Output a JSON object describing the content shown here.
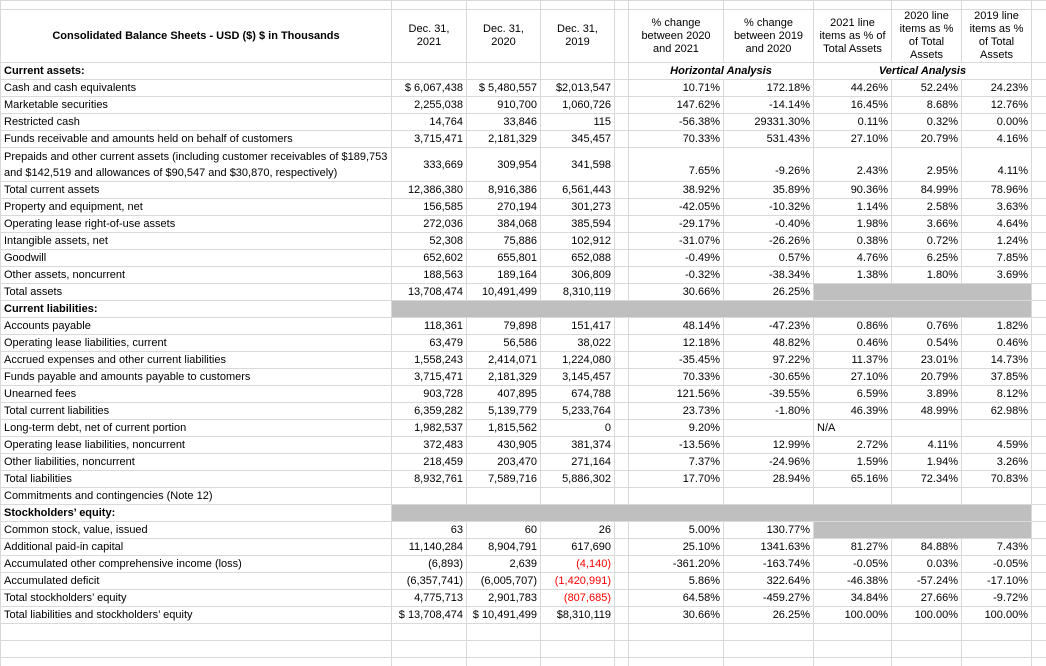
{
  "header": {
    "title": "Consolidated Balance Sheets - USD ($) $ in Thousands",
    "columns": [
      "Dec. 31, 2021",
      "Dec. 31, 2020",
      "Dec. 31, 2019",
      "% change between 2020 and 2021",
      "% change between 2019 and 2020",
      "2021 line items as % of Total Assets",
      "2020 line items as % of Total Assets",
      "2019 line items as % of Total Assets"
    ]
  },
  "analysis_labels": {
    "horizontal": "Horizontal Analysis",
    "vertical": "Vertical Analysis"
  },
  "colors": {
    "grey_fill": "#bfbfbf",
    "negative_red": "#ff0000",
    "gridline": "#d9d9d9"
  },
  "rows": [
    {
      "label": "Current assets:",
      "bold": true,
      "analysis": true
    },
    {
      "label": "Cash and cash equivalents",
      "values": [
        "$ 6,067,438",
        "$ 5,480,557",
        "$2,013,547",
        "10.71%",
        "172.18%",
        "44.26%",
        "52.24%",
        "24.23%"
      ]
    },
    {
      "label": "Marketable securities",
      "values": [
        "2,255,038",
        "910,700",
        "1,060,726",
        "147.62%",
        "-14.14%",
        "16.45%",
        "8.68%",
        "12.76%"
      ]
    },
    {
      "label": "Restricted cash",
      "values": [
        "14,764",
        "33,846",
        "115",
        "-56.38%",
        "29331.30%",
        "0.11%",
        "0.32%",
        "0.00%"
      ]
    },
    {
      "label": "Funds receivable and amounts held on behalf of customers",
      "values": [
        "3,715,471",
        "2,181,329",
        "345,457",
        "70.33%",
        "531.43%",
        "27.10%",
        "20.79%",
        "4.16%"
      ]
    },
    {
      "label": "Prepaids and other current assets (including customer receivables of $189,753 and $142,519 and allowances of $90,547 and $30,870, respectively)",
      "tall": true,
      "pct_bottom": true,
      "values": [
        "333,669",
        "309,954",
        "341,598",
        "7.65%",
        "-9.26%",
        "2.43%",
        "2.95%",
        "4.11%"
      ]
    },
    {
      "label": "Total current assets",
      "values": [
        "12,386,380",
        "8,916,386",
        "6,561,443",
        "38.92%",
        "35.89%",
        "90.36%",
        "84.99%",
        "78.96%"
      ]
    },
    {
      "label": "Property and equipment, net",
      "values": [
        "156,585",
        "270,194",
        "301,273",
        "-42.05%",
        "-10.32%",
        "1.14%",
        "2.58%",
        "3.63%"
      ]
    },
    {
      "label": "Operating lease right-of-use assets",
      "values": [
        "272,036",
        "384,068",
        "385,594",
        "-29.17%",
        "-0.40%",
        "1.98%",
        "3.66%",
        "4.64%"
      ]
    },
    {
      "label": "Intangible assets, net",
      "values": [
        "52,308",
        "75,886",
        "102,912",
        "-31.07%",
        "-26.26%",
        "0.38%",
        "0.72%",
        "1.24%"
      ]
    },
    {
      "label": "Goodwill",
      "values": [
        "652,602",
        "655,801",
        "652,088",
        "-0.49%",
        "0.57%",
        "4.76%",
        "6.25%",
        "7.85%"
      ]
    },
    {
      "label": "Other assets, noncurrent",
      "values": [
        "188,563",
        "189,164",
        "306,809",
        "-0.32%",
        "-38.34%",
        "1.38%",
        "1.80%",
        "3.69%"
      ]
    },
    {
      "label": "Total assets",
      "grey": "vertical",
      "values": [
        "13,708,474",
        "10,491,499",
        "8,310,119",
        "30.66%",
        "26.25%",
        "",
        "",
        ""
      ]
    },
    {
      "label": "Current liabilities:",
      "bold": true,
      "grey": "data"
    },
    {
      "label": "Accounts payable",
      "values": [
        "118,361",
        "79,898",
        "151,417",
        "48.14%",
        "-47.23%",
        "0.86%",
        "0.76%",
        "1.82%"
      ]
    },
    {
      "label": "Operating lease liabilities, current",
      "values": [
        "63,479",
        "56,586",
        "38,022",
        "12.18%",
        "48.82%",
        "0.46%",
        "0.54%",
        "0.46%"
      ]
    },
    {
      "label": "Accrued expenses and other current liabilities",
      "values": [
        "1,558,243",
        "2,414,071",
        "1,224,080",
        "-35.45%",
        "97.22%",
        "11.37%",
        "23.01%",
        "14.73%"
      ]
    },
    {
      "label": "Funds payable and amounts payable to customers",
      "values": [
        "3,715,471",
        "2,181,329",
        "3,145,457",
        "70.33%",
        "-30.65%",
        "27.10%",
        "20.79%",
        "37.85%"
      ]
    },
    {
      "label": "Unearned fees",
      "values": [
        "903,728",
        "407,895",
        "674,788",
        "121.56%",
        "-39.55%",
        "6.59%",
        "3.89%",
        "8.12%"
      ]
    },
    {
      "label": "Total current liabilities",
      "values": [
        "6,359,282",
        "5,139,779",
        "5,233,764",
        "23.73%",
        "-1.80%",
        "46.39%",
        "48.99%",
        "62.98%"
      ]
    },
    {
      "label": "Long-term debt, net of current portion",
      "na_left": true,
      "values": [
        "1,982,537",
        "1,815,562",
        "0",
        "9.20%",
        "",
        "N/A",
        "",
        ""
      ]
    },
    {
      "label": "Operating lease liabilities, noncurrent",
      "values": [
        "372,483",
        "430,905",
        "381,374",
        "-13.56%",
        "12.99%",
        "2.72%",
        "4.11%",
        "4.59%"
      ]
    },
    {
      "label": "Other liabilities, noncurrent",
      "values": [
        "218,459",
        "203,470",
        "271,164",
        "7.37%",
        "-24.96%",
        "1.59%",
        "1.94%",
        "3.26%"
      ]
    },
    {
      "label": "Total liabilities",
      "values": [
        "8,932,761",
        "7,589,716",
        "5,886,302",
        "17.70%",
        "28.94%",
        "65.16%",
        "72.34%",
        "70.83%"
      ]
    },
    {
      "label": "Commitments and contingencies (Note 12)"
    },
    {
      "label": "Stockholders’ equity:",
      "bold": true,
      "grey": "data"
    },
    {
      "label": "Common stock, value, issued",
      "grey": "vertical",
      "values": [
        "63",
        "60",
        "26",
        "5.00%",
        "130.77%",
        "",
        "",
        ""
      ]
    },
    {
      "label": "Additional paid-in capital",
      "values": [
        "11,140,284",
        "8,904,791",
        "617,690",
        "25.10%",
        "1341.63%",
        "81.27%",
        "84.88%",
        "7.43%"
      ]
    },
    {
      "label": "Accumulated other comprehensive income (loss)",
      "red": [
        2
      ],
      "values": [
        "(6,893)",
        "2,639",
        "(4,140)",
        "-361.20%",
        "-163.74%",
        "-0.05%",
        "0.03%",
        "-0.05%"
      ]
    },
    {
      "label": "Accumulated deficit",
      "red": [
        2
      ],
      "values": [
        "(6,357,741)",
        "(6,005,707)",
        "(1,420,991)",
        "5.86%",
        "322.64%",
        "-46.38%",
        "-57.24%",
        "-17.10%"
      ]
    },
    {
      "label": "Total stockholders’ equity",
      "red": [
        2
      ],
      "values": [
        "4,775,713",
        "2,901,783",
        "(807,685)",
        "64.58%",
        "-459.27%",
        "34.84%",
        "27.66%",
        "-9.72%"
      ]
    },
    {
      "label": "Total liabilities and stockholders’ equity",
      "values": [
        "$ 13,708,474",
        "$ 10,491,499",
        "$8,310,119",
        "30.66%",
        "26.25%",
        "100.00%",
        "100.00%",
        "100.00%"
      ]
    },
    {
      "label": ""
    },
    {
      "label": ""
    }
  ]
}
